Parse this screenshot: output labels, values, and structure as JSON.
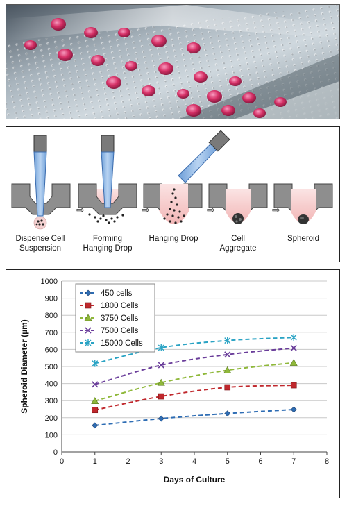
{
  "diagram": {
    "steps": [
      {
        "line1": "Dispense Cell",
        "line2": "Suspension"
      },
      {
        "line1": "Forming",
        "line2": "Hanging Drop"
      },
      {
        "line1": "Hanging Drop",
        "line2": ""
      },
      {
        "line1": "Cell",
        "line2": "Aggregate"
      },
      {
        "line1": "Spheroid",
        "line2": ""
      }
    ]
  },
  "chart_data": {
    "type": "line",
    "xlabel": "Days of Culture",
    "ylabel": "Spheroid Diameter (µm)",
    "xlim": [
      0,
      8
    ],
    "ylim": [
      0,
      1000
    ],
    "xticks": [
      "0",
      "1",
      "2",
      "3",
      "4",
      "5",
      "6",
      "7",
      "8"
    ],
    "yticks": [
      "0",
      "100",
      "200",
      "300",
      "400",
      "500",
      "600",
      "700",
      "800",
      "900",
      "1000"
    ],
    "grid": true,
    "legend_position": "top-left",
    "x": [
      1,
      3,
      5,
      7
    ],
    "series": [
      {
        "name": "450 cells",
        "values": [
          155,
          195,
          225,
          248
        ],
        "color": "#2e6db4",
        "marker": "diamond"
      },
      {
        "name": "1800 Cells",
        "values": [
          245,
          325,
          378,
          390
        ],
        "color": "#c0282d",
        "marker": "square"
      },
      {
        "name": "3750 Cells",
        "values": [
          298,
          405,
          478,
          522
        ],
        "color": "#8fb83a",
        "marker": "triangle"
      },
      {
        "name": "7500 Cells",
        "values": [
          395,
          508,
          570,
          608
        ],
        "color": "#6a3d9a",
        "marker": "x"
      },
      {
        "name": "15000 Cells",
        "values": [
          518,
          610,
          652,
          670
        ],
        "color": "#2aa3c4",
        "marker": "star"
      }
    ]
  }
}
